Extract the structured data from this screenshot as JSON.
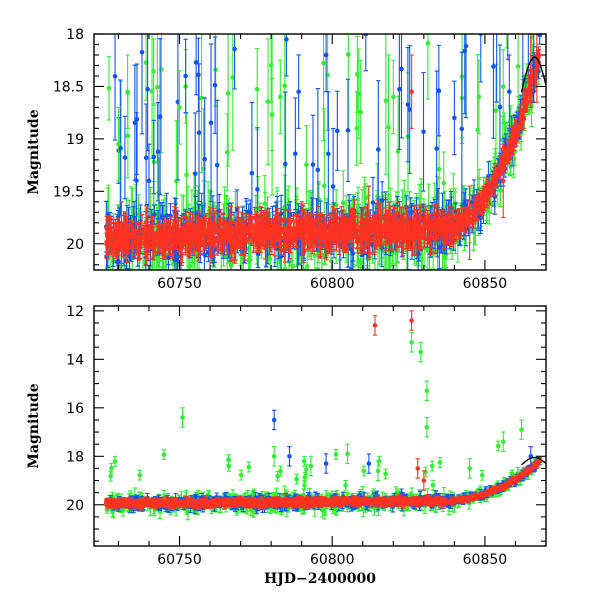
{
  "chart_data": [
    {
      "type": "scatter",
      "panel": "top",
      "xlabel": "",
      "ylabel": "Magnitude",
      "xlim": [
        60722,
        60870
      ],
      "ylim": [
        20.25,
        18.0
      ],
      "y_inverted": true,
      "x_ticks": [
        60750,
        60800,
        60850
      ],
      "x_tick_labels": [
        "60750",
        "60800",
        "60850"
      ],
      "y_ticks": [
        18,
        18.5,
        19,
        19.5,
        20
      ],
      "y_tick_labels": [
        "18",
        "18.5",
        "19",
        "19.5",
        "20"
      ],
      "error_bars": true,
      "series_colors": [
        "#33ee33",
        "#1155ee",
        "#ff3322"
      ],
      "trend_overlay": true,
      "sample_points": {
        "green": [
          [
            60730,
            19.05
          ],
          [
            60733,
            18.55
          ],
          [
            60750,
            18.7
          ],
          [
            60752,
            18.5
          ],
          [
            60780,
            18.3
          ],
          [
            60783,
            18.6
          ],
          [
            60808,
            18.9
          ],
          [
            60820,
            18.6
          ],
          [
            60848,
            18.6
          ],
          [
            60856,
            18.5
          ]
        ],
        "blue": [
          [
            60740,
            19.4
          ],
          [
            60752,
            18.4
          ],
          [
            60785,
            18.05
          ],
          [
            60789,
            18.55
          ],
          [
            60798,
            18.2
          ],
          [
            60811,
            18.0
          ],
          [
            60840,
            18.8
          ],
          [
            60858,
            18.55
          ],
          [
            60866,
            18.3
          ]
        ],
        "red": [
          [
            60731,
            19.95
          ],
          [
            60760,
            20.0
          ],
          [
            60790,
            19.95
          ],
          [
            60812,
            19.8
          ],
          [
            60826,
            18.55
          ],
          [
            60845,
            19.8
          ],
          [
            60856,
            19.4
          ],
          [
            60865,
            18.35
          ],
          [
            60867,
            18.3
          ]
        ]
      }
    },
    {
      "type": "scatter",
      "panel": "bottom",
      "xlabel": "HJD−2400000",
      "ylabel": "Magnitude",
      "xlim": [
        60722,
        60870
      ],
      "ylim": [
        21.7,
        11.8
      ],
      "y_inverted": true,
      "x_ticks": [
        60750,
        60800,
        60850
      ],
      "x_tick_labels": [
        "60750",
        "60800",
        "60850"
      ],
      "y_ticks": [
        12,
        14,
        16,
        18,
        20
      ],
      "y_tick_labels": [
        "12",
        "14",
        "16",
        "18",
        "20"
      ],
      "error_bars": true,
      "series_colors": [
        "#33ee33",
        "#1155ee",
        "#ff3322"
      ],
      "trend_overlay": true,
      "outliers": {
        "green": [
          [
            60751,
            16.4
          ],
          [
            60781,
            18.0
          ],
          [
            60793,
            18.4
          ],
          [
            60805,
            17.9
          ],
          [
            60815,
            18.6
          ],
          [
            60826,
            13.3
          ],
          [
            60829,
            13.7
          ],
          [
            60831,
            15.3
          ],
          [
            60831,
            16.8
          ],
          [
            60845,
            18.5
          ],
          [
            60856,
            17.4
          ],
          [
            60862,
            16.9
          ]
        ],
        "blue": [
          [
            60781,
            16.5
          ],
          [
            60786,
            18.0
          ],
          [
            60798,
            18.3
          ],
          [
            60812,
            18.3
          ],
          [
            60865,
            18.0
          ]
        ],
        "red": [
          [
            60814,
            12.6
          ],
          [
            60826,
            12.4
          ],
          [
            60828,
            18.5
          ],
          [
            60830,
            19.0
          ]
        ]
      }
    }
  ]
}
